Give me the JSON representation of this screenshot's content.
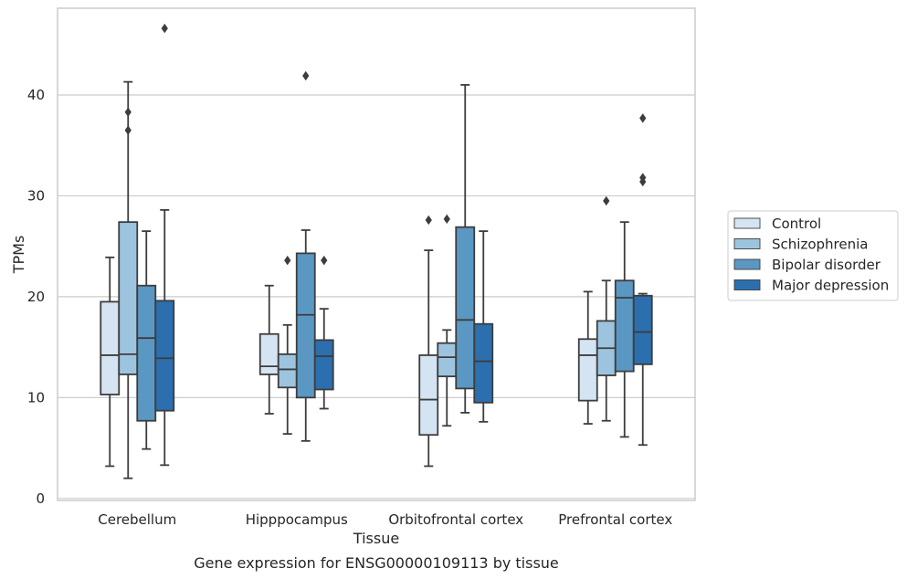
{
  "chart_data": {
    "type": "box",
    "xlabel": "Tissue",
    "ylabel": "TPMs",
    "caption": "Gene expression for ENSG00000109113 by tissue",
    "ylim": [
      -0.2,
      48.6
    ],
    "yticks": [
      0,
      10,
      20,
      30,
      40
    ],
    "grid": "horizontal",
    "legend_position": "right",
    "categories": [
      "Cerebellum",
      "Hipppocampus",
      "Orbitofrontal cortex",
      "Prefrontal cortex"
    ],
    "series": [
      {
        "name": "Control",
        "color": "#d5e4f3",
        "boxes": [
          {
            "whislo": 3.2,
            "q1": 10.3,
            "med": 14.2,
            "q3": 19.5,
            "whishi": 23.9,
            "fliers": []
          },
          {
            "whislo": 8.4,
            "q1": 12.3,
            "med": 13.1,
            "q3": 16.3,
            "whishi": 21.1,
            "fliers": []
          },
          {
            "whislo": 3.2,
            "q1": 6.3,
            "med": 9.8,
            "q3": 14.2,
            "whishi": 24.6,
            "fliers": [
              27.6
            ]
          },
          {
            "whislo": 7.4,
            "q1": 9.7,
            "med": 14.2,
            "q3": 15.8,
            "whishi": 20.5,
            "fliers": []
          }
        ]
      },
      {
        "name": "Schizophrenia",
        "color": "#9dc4de",
        "boxes": [
          {
            "whislo": 2.0,
            "q1": 12.3,
            "med": 14.3,
            "q3": 27.4,
            "whishi": 41.3,
            "fliers": [
              38.3,
              36.5
            ]
          },
          {
            "whislo": 6.4,
            "q1": 11.0,
            "med": 12.8,
            "q3": 14.3,
            "whishi": 17.2,
            "fliers": [
              23.6
            ]
          },
          {
            "whislo": 7.2,
            "q1": 12.1,
            "med": 14.0,
            "q3": 15.4,
            "whishi": 16.7,
            "fliers": [
              27.7
            ]
          },
          {
            "whislo": 7.7,
            "q1": 12.2,
            "med": 14.9,
            "q3": 17.6,
            "whishi": 21.6,
            "fliers": [
              29.5
            ]
          }
        ]
      },
      {
        "name": "Bipolar disorder",
        "color": "#5b97c3",
        "boxes": [
          {
            "whislo": 4.9,
            "q1": 7.7,
            "med": 15.9,
            "q3": 21.1,
            "whishi": 26.5,
            "fliers": []
          },
          {
            "whislo": 5.7,
            "q1": 10.0,
            "med": 18.2,
            "q3": 24.3,
            "whishi": 26.6,
            "fliers": [
              41.9
            ]
          },
          {
            "whislo": 8.5,
            "q1": 10.9,
            "med": 17.7,
            "q3": 26.9,
            "whishi": 41.0,
            "fliers": []
          },
          {
            "whislo": 6.1,
            "q1": 12.6,
            "med": 19.9,
            "q3": 21.6,
            "whishi": 27.4,
            "fliers": []
          }
        ]
      },
      {
        "name": "Major depression",
        "color": "#2c6fae",
        "boxes": [
          {
            "whislo": 3.3,
            "q1": 8.7,
            "med": 13.9,
            "q3": 19.6,
            "whishi": 28.6,
            "fliers": [
              46.6
            ]
          },
          {
            "whislo": 8.9,
            "q1": 10.8,
            "med": 14.1,
            "q3": 15.7,
            "whishi": 18.8,
            "fliers": [
              23.6
            ]
          },
          {
            "whislo": 7.6,
            "q1": 9.5,
            "med": 13.6,
            "q3": 17.3,
            "whishi": 26.5,
            "fliers": []
          },
          {
            "whislo": 5.3,
            "q1": 13.3,
            "med": 16.5,
            "q3": 20.1,
            "whishi": 20.3,
            "fliers": [
              37.7,
              31.8,
              31.4
            ]
          }
        ]
      }
    ]
  }
}
